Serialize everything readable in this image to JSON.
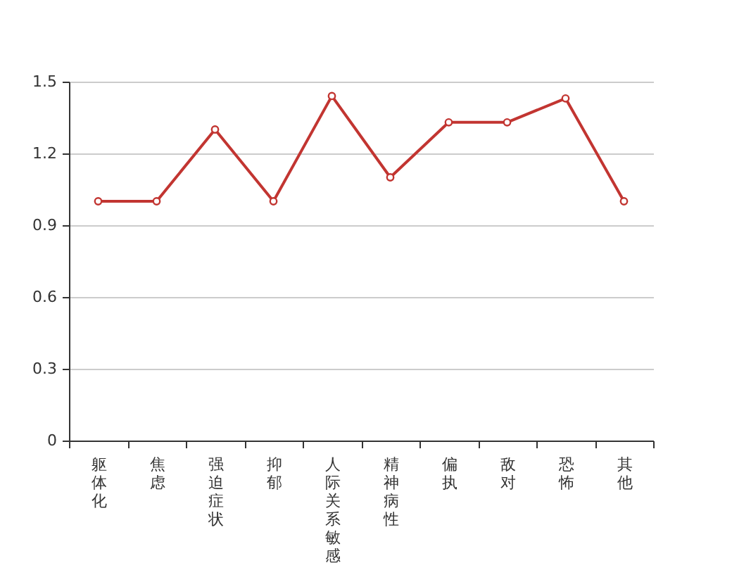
{
  "chart_data": {
    "type": "line",
    "categories": [
      "躯体化",
      "焦虑",
      "强迫症状",
      "抑郁",
      "人际关系敏感",
      "精神病性",
      "偏执",
      "敌对",
      "恐怖",
      "其他"
    ],
    "values": [
      1.0,
      1.0,
      1.3,
      1.0,
      1.44,
      1.1,
      1.33,
      1.33,
      1.43,
      1.0
    ],
    "color": "#c23531",
    "ylim": [
      0,
      1.5
    ],
    "yticks": [
      0,
      0.3,
      0.6,
      0.9,
      1.2,
      1.5
    ],
    "grid": "y",
    "marker": "circle"
  }
}
